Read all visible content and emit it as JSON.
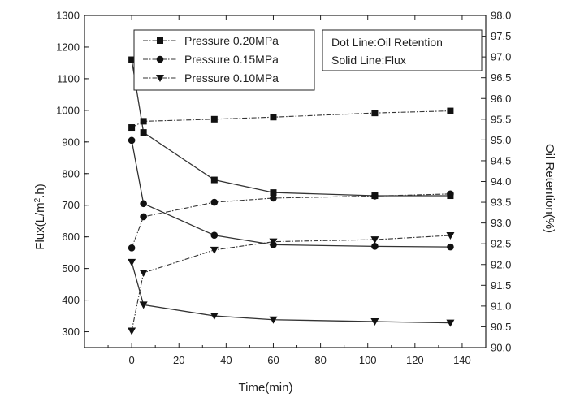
{
  "chart_data": {
    "type": "line",
    "xlabel": "Time(min)",
    "ylabel_left_prefix": "Flux(L/m",
    "ylabel_left_sup": "2",
    "ylabel_left_suffix": ".h)",
    "ylabel_right": "Oil Retention(%)",
    "xlim": [
      -20,
      150
    ],
    "ylim_left": [
      250,
      1300
    ],
    "ylim_right": [
      90.0,
      98.0
    ],
    "x_ticks": [
      0,
      20,
      40,
      60,
      80,
      100,
      120,
      140
    ],
    "y_left_ticks": [
      300,
      400,
      500,
      600,
      700,
      800,
      900,
      1000,
      1100,
      1200,
      1300
    ],
    "y_right_ticks": [
      "90.0",
      "90.5",
      "91.0",
      "91.5",
      "92.0",
      "92.5",
      "93.0",
      "93.5",
      "94.0",
      "94.5",
      "95.0",
      "95.5",
      "96.0",
      "96.5",
      "97.0",
      "97.5",
      "98.0"
    ],
    "grid": false,
    "legend_position": "top-left",
    "legend": [
      {
        "label": "Pressure 0.20MPa",
        "marker": "square"
      },
      {
        "label": "Pressure 0.15MPa",
        "marker": "circle"
      },
      {
        "label": "Pressure 0.10MPa",
        "marker": "triangle-down"
      }
    ],
    "note_lines": [
      "Dot Line:Oil Retention",
      "Solid Line:Flux"
    ],
    "flux_series": [
      {
        "name": "Pressure 0.20MPa",
        "marker": "square",
        "x": [
          0,
          5,
          35,
          60,
          103,
          135
        ],
        "y": [
          1160,
          930,
          780,
          740,
          730,
          730
        ]
      },
      {
        "name": "Pressure 0.15MPa",
        "marker": "circle",
        "x": [
          0,
          5,
          35,
          60,
          103,
          135
        ],
        "y": [
          905,
          705,
          605,
          575,
          570,
          568
        ]
      },
      {
        "name": "Pressure 0.10MPa",
        "marker": "triangle-down",
        "x": [
          0,
          5,
          35,
          60,
          103,
          135
        ],
        "y": [
          520,
          385,
          350,
          338,
          332,
          328
        ]
      }
    ],
    "retention_series": [
      {
        "name": "Pressure 0.20MPa",
        "marker": "square",
        "x": [
          0,
          5,
          35,
          60,
          103,
          135
        ],
        "y": [
          95.3,
          95.45,
          95.5,
          95.55,
          95.65,
          95.7
        ]
      },
      {
        "name": "Pressure 0.15MPa",
        "marker": "circle",
        "x": [
          0,
          5,
          35,
          60,
          103,
          135
        ],
        "y": [
          92.4,
          93.15,
          93.5,
          93.6,
          93.65,
          93.7
        ]
      },
      {
        "name": "Pressure 0.10MPa",
        "marker": "triangle-down",
        "x": [
          0,
          5,
          35,
          60,
          103,
          135
        ],
        "y": [
          90.4,
          91.8,
          92.35,
          92.55,
          92.6,
          92.7
        ]
      }
    ]
  }
}
